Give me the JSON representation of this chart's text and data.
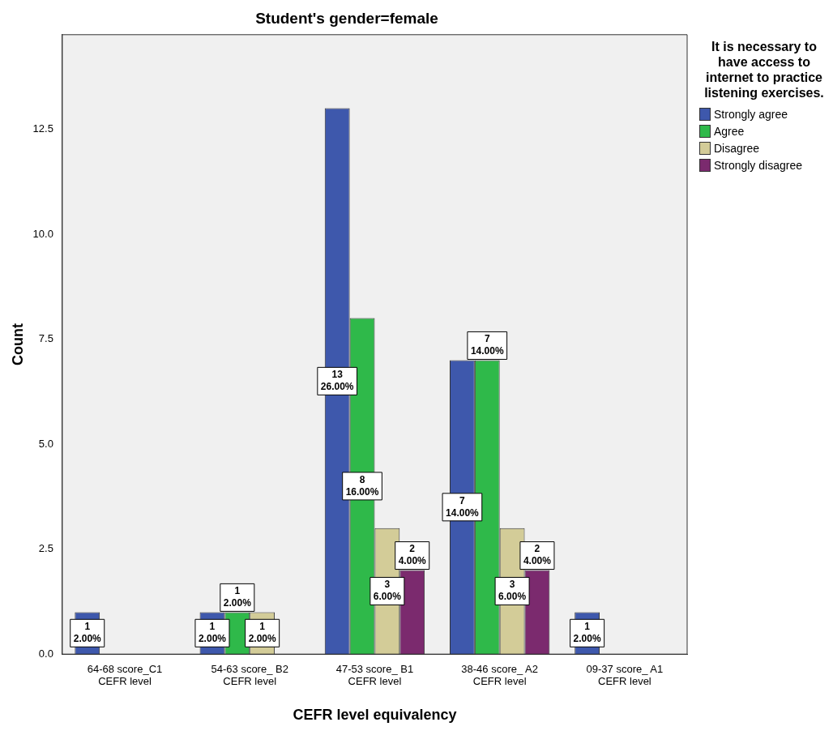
{
  "chart_data": {
    "type": "bar",
    "title": "Student's gender=female",
    "xlabel": "CEFR level equivalency",
    "ylabel": "Count",
    "legend_title": "It is necessary to have access to internet to practice listening exercises.",
    "legend": "right",
    "grid": false,
    "categories": [
      "64-68 score_C1 CEFR level",
      "54-63 score_ B2 CEFR level",
      "47-53 score_ B1 CEFR level",
      "38-46 score_ A2 CEFR level",
      "09-37 score_ A1 CEFR level"
    ],
    "ylim": [
      0,
      14.75
    ],
    "yticks": [
      {
        "value": 0,
        "label": "0.0"
      },
      {
        "value": 2.5,
        "label": "2.5"
      },
      {
        "value": 5,
        "label": "5.0"
      },
      {
        "value": 7.5,
        "label": "7.5"
      },
      {
        "value": 10,
        "label": "10.0"
      },
      {
        "value": 12.5,
        "label": "12.5"
      }
    ],
    "series": [
      {
        "name": "Strongly agree",
        "color": "#3e58ac",
        "values": [
          1,
          1,
          13,
          7,
          1
        ],
        "value_labels": [
          "1\n2.00%",
          "1\n2.00%",
          "13\n26.00%",
          "7\n14.00%",
          "1\n2.00%"
        ]
      },
      {
        "name": "Agree",
        "color": "#2fb94a",
        "values": [
          null,
          1,
          8,
          7,
          null
        ],
        "value_labels": [
          null,
          "1\n2.00%",
          "8\n16.00%",
          "7\n14.00%",
          null
        ]
      },
      {
        "name": "Disagree",
        "color": "#d3cc98",
        "values": [
          null,
          1,
          3,
          3,
          null
        ],
        "value_labels": [
          null,
          "1\n2.00%",
          "3\n6.00%",
          "3\n6.00%",
          null
        ]
      },
      {
        "name": "Strongly disagree",
        "color": "#7b2a6e",
        "values": [
          null,
          null,
          2,
          2,
          null
        ],
        "value_labels": [
          null,
          null,
          "2\n4.00%",
          "2\n4.00%",
          null
        ]
      }
    ]
  }
}
